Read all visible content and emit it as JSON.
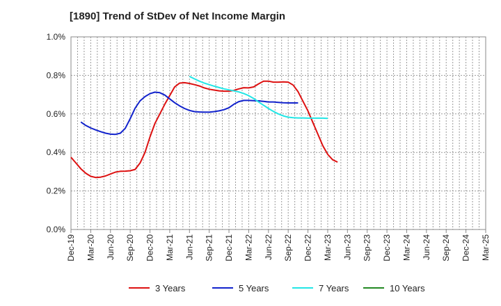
{
  "chart_data": {
    "type": "line",
    "title": "[1890]  Trend of StDev of Net Income Margin",
    "x_categories": [
      "Dec-19",
      "Mar-20",
      "Jun-20",
      "Sep-20",
      "Dec-20",
      "Mar-21",
      "Jun-21",
      "Sep-21",
      "Dec-21",
      "Mar-22",
      "Jun-22",
      "Sep-22",
      "Dec-22",
      "Mar-23",
      "Jun-23",
      "Sep-23",
      "Dec-23",
      "Mar-24",
      "Jun-24",
      "Sep-24",
      "Dec-24",
      "Mar-25"
    ],
    "y_ticks": [
      "0.0%",
      "0.2%",
      "0.4%",
      "0.6%",
      "0.8%",
      "1.0%"
    ],
    "ylim": [
      0,
      1.0
    ],
    "grid": true,
    "legend_position": "bottom",
    "series": [
      {
        "name": "3 Years",
        "color": "#dd1111",
        "values": [
          [
            0,
            0.375
          ],
          [
            0.25,
            0.345
          ],
          [
            0.5,
            0.315
          ],
          [
            0.75,
            0.292
          ],
          [
            1,
            0.276
          ],
          [
            1.25,
            0.27
          ],
          [
            1.5,
            0.272
          ],
          [
            1.75,
            0.278
          ],
          [
            2,
            0.288
          ],
          [
            2.25,
            0.298
          ],
          [
            2.5,
            0.302
          ],
          [
            2.75,
            0.303
          ],
          [
            3,
            0.305
          ],
          [
            3.25,
            0.312
          ],
          [
            3.5,
            0.345
          ],
          [
            3.75,
            0.4
          ],
          [
            4,
            0.48
          ],
          [
            4.25,
            0.55
          ],
          [
            4.5,
            0.6
          ],
          [
            4.75,
            0.65
          ],
          [
            5,
            0.695
          ],
          [
            5.25,
            0.74
          ],
          [
            5.5,
            0.76
          ],
          [
            5.75,
            0.762
          ],
          [
            6,
            0.758
          ],
          [
            6.25,
            0.752
          ],
          [
            6.5,
            0.745
          ],
          [
            6.75,
            0.735
          ],
          [
            7,
            0.728
          ],
          [
            7.25,
            0.724
          ],
          [
            7.5,
            0.72
          ],
          [
            7.75,
            0.718
          ],
          [
            8,
            0.718
          ],
          [
            8.25,
            0.722
          ],
          [
            8.5,
            0.73
          ],
          [
            8.75,
            0.736
          ],
          [
            9,
            0.735
          ],
          [
            9.25,
            0.74
          ],
          [
            9.5,
            0.756
          ],
          [
            9.75,
            0.77
          ],
          [
            10,
            0.77
          ],
          [
            10.25,
            0.765
          ],
          [
            10.5,
            0.765
          ],
          [
            10.75,
            0.766
          ],
          [
            11,
            0.765
          ],
          [
            11.25,
            0.75
          ],
          [
            11.5,
            0.715
          ],
          [
            11.75,
            0.665
          ],
          [
            12,
            0.615
          ],
          [
            12.25,
            0.555
          ],
          [
            12.5,
            0.495
          ],
          [
            12.75,
            0.435
          ],
          [
            13,
            0.39
          ],
          [
            13.25,
            0.362
          ],
          [
            13.5,
            0.35
          ]
        ]
      },
      {
        "name": "5 Years",
        "color": "#1122cc",
        "values": [
          [
            0.5,
            0.558
          ],
          [
            0.75,
            0.54
          ],
          [
            1,
            0.527
          ],
          [
            1.25,
            0.517
          ],
          [
            1.5,
            0.508
          ],
          [
            1.75,
            0.5
          ],
          [
            2,
            0.495
          ],
          [
            2.25,
            0.494
          ],
          [
            2.5,
            0.5
          ],
          [
            2.75,
            0.525
          ],
          [
            3,
            0.575
          ],
          [
            3.25,
            0.63
          ],
          [
            3.5,
            0.668
          ],
          [
            3.75,
            0.69
          ],
          [
            4,
            0.705
          ],
          [
            4.25,
            0.713
          ],
          [
            4.5,
            0.71
          ],
          [
            4.75,
            0.698
          ],
          [
            5,
            0.678
          ],
          [
            5.25,
            0.658
          ],
          [
            5.5,
            0.642
          ],
          [
            5.75,
            0.628
          ],
          [
            6,
            0.618
          ],
          [
            6.25,
            0.612
          ],
          [
            6.5,
            0.61
          ],
          [
            6.75,
            0.609
          ],
          [
            7,
            0.609
          ],
          [
            7.25,
            0.612
          ],
          [
            7.5,
            0.616
          ],
          [
            7.75,
            0.622
          ],
          [
            8,
            0.632
          ],
          [
            8.25,
            0.65
          ],
          [
            8.5,
            0.664
          ],
          [
            8.75,
            0.67
          ],
          [
            9,
            0.67
          ],
          [
            9.25,
            0.669
          ],
          [
            9.5,
            0.668
          ],
          [
            9.75,
            0.665
          ],
          [
            10,
            0.662
          ],
          [
            10.25,
            0.662
          ],
          [
            10.5,
            0.66
          ],
          [
            10.75,
            0.658
          ],
          [
            11,
            0.657
          ],
          [
            11.25,
            0.657
          ],
          [
            11.5,
            0.657
          ]
        ]
      },
      {
        "name": "7 Years",
        "color": "#22e6e6",
        "values": [
          [
            6,
            0.795
          ],
          [
            6.25,
            0.782
          ],
          [
            6.5,
            0.77
          ],
          [
            6.75,
            0.76
          ],
          [
            7,
            0.752
          ],
          [
            7.25,
            0.744
          ],
          [
            7.5,
            0.737
          ],
          [
            7.75,
            0.73
          ],
          [
            8,
            0.725
          ],
          [
            8.25,
            0.72
          ],
          [
            8.5,
            0.714
          ],
          [
            8.75,
            0.706
          ],
          [
            9,
            0.695
          ],
          [
            9.25,
            0.68
          ],
          [
            9.5,
            0.662
          ],
          [
            9.75,
            0.645
          ],
          [
            10,
            0.628
          ],
          [
            10.25,
            0.613
          ],
          [
            10.5,
            0.6
          ],
          [
            10.75,
            0.59
          ],
          [
            11,
            0.583
          ],
          [
            11.25,
            0.58
          ],
          [
            11.5,
            0.579
          ],
          [
            11.75,
            0.579
          ],
          [
            12,
            0.578
          ],
          [
            12.25,
            0.578
          ],
          [
            12.5,
            0.578
          ],
          [
            12.75,
            0.578
          ],
          [
            13,
            0.577
          ]
        ]
      },
      {
        "name": "10 Years",
        "color": "#228822",
        "values": []
      }
    ]
  }
}
